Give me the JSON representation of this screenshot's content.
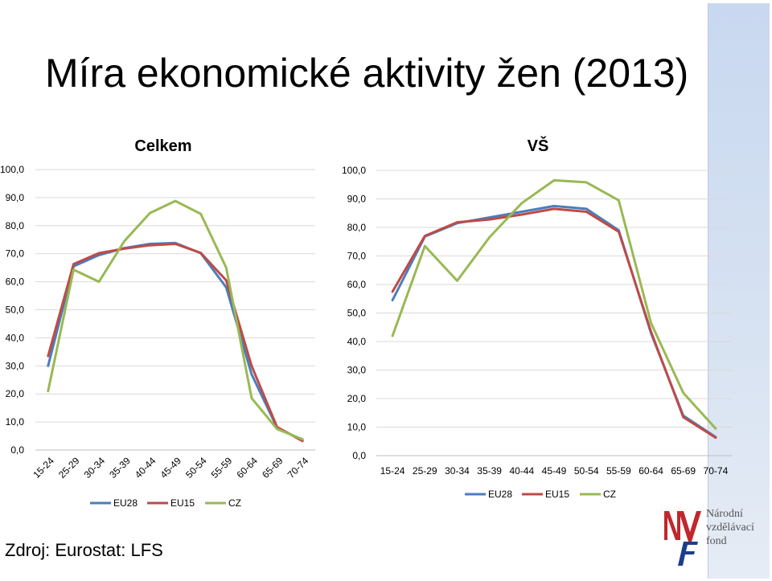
{
  "title": "Míra ekonomické aktivity žen (2013)",
  "source": "Zdroj: Eurostat: LFS",
  "logo": {
    "lines": [
      "Národní",
      "vzdělávací",
      "fond"
    ]
  },
  "colors": {
    "EU28": "#4a7ebb",
    "EU15": "#be4b48",
    "CZ": "#98b954"
  },
  "chart_data": [
    {
      "type": "line",
      "title": "Celkem",
      "categories": [
        "15-24",
        "25-29",
        "30-34",
        "35-39",
        "40-44",
        "45-49",
        "50-54",
        "55-59",
        "60-64",
        "65-69",
        "70-74"
      ],
      "y_tick_labels": [
        "0,0",
        "10,0",
        "20,0",
        "30,0",
        "40,0",
        "50,0",
        "60,0",
        "70,0",
        "80,0",
        "90,0",
        "100,0"
      ],
      "ylim": [
        0,
        100
      ],
      "legend_position": "bottom",
      "series": [
        {
          "name": "EU28",
          "values": [
            30.0,
            65.5,
            69.5,
            72.0,
            73.5,
            73.8,
            70.2,
            58.0,
            27.0,
            8.0,
            3.5
          ]
        },
        {
          "name": "EU15",
          "values": [
            33.5,
            66.3,
            70.2,
            71.8,
            73.0,
            73.5,
            70.3,
            60.5,
            30.0,
            8.2,
            3.2
          ]
        },
        {
          "name": "CZ",
          "values": [
            21.0,
            64.3,
            60.0,
            74.5,
            84.5,
            88.8,
            84.2,
            65.0,
            18.5,
            7.5,
            3.8
          ]
        }
      ]
    },
    {
      "type": "line",
      "title": "VŠ",
      "categories": [
        "15-24",
        "25-29",
        "30-34",
        "35-39",
        "40-44",
        "45-49",
        "50-54",
        "55-59",
        "60-64",
        "65-69",
        "70-74"
      ],
      "y_tick_labels": [
        "0,0",
        "10,0",
        "20,0",
        "30,0",
        "40,0",
        "50,0",
        "60,0",
        "70,0",
        "80,0",
        "90,0",
        "100,0"
      ],
      "ylim": [
        0,
        100
      ],
      "legend_position": "bottom",
      "series": [
        {
          "name": "EU28",
          "values": [
            54.5,
            76.8,
            81.5,
            83.5,
            85.5,
            87.5,
            86.5,
            79.0,
            43.0,
            14.0,
            6.5
          ]
        },
        {
          "name": "EU15",
          "values": [
            57.5,
            77.0,
            81.8,
            82.8,
            84.5,
            86.5,
            85.5,
            78.5,
            43.5,
            13.5,
            6.3
          ]
        },
        {
          "name": "CZ",
          "values": [
            42.0,
            73.5,
            61.3,
            76.5,
            88.5,
            96.5,
            95.8,
            89.5,
            46.5,
            22.0,
            9.5
          ]
        }
      ]
    }
  ]
}
